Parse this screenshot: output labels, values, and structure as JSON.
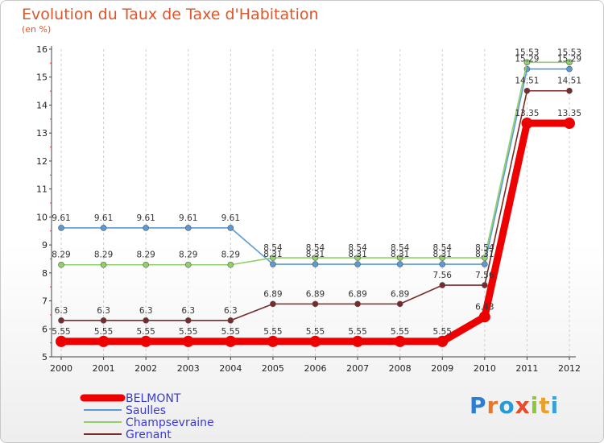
{
  "chart_data": {
    "type": "line",
    "title": "Evolution du Taux de Taxe d'Habitation",
    "unit_label": "(en %)",
    "x": [
      "2000",
      "2001",
      "2002",
      "2003",
      "2004",
      "2005",
      "2006",
      "2007",
      "2008",
      "2009",
      "2010",
      "2011",
      "2012"
    ],
    "ylim": [
      5,
      16
    ],
    "yticks": [
      "5",
      "6",
      "7",
      "8",
      "9",
      "10",
      "11",
      "12",
      "13",
      "14",
      "15",
      "16"
    ],
    "grid": "vertical-dashed",
    "legend_position": "bottom-left",
    "series": [
      {
        "name": "BELMONT",
        "color": "#ee0000",
        "values": [
          5.55,
          5.55,
          5.55,
          5.55,
          5.55,
          5.55,
          5.55,
          5.55,
          5.55,
          5.55,
          6.43,
          13.35,
          13.35
        ],
        "labels": [
          "5.55",
          "5.55",
          "5.55",
          "5.55",
          "5.55",
          "5.55",
          "5.55",
          "5.55",
          "5.55",
          "5.55",
          "6.43",
          "13.35",
          "13.35"
        ]
      },
      {
        "name": "Saulles",
        "color": "#5a9ad6",
        "values": [
          9.61,
          9.61,
          9.61,
          9.61,
          9.61,
          8.31,
          8.31,
          8.31,
          8.31,
          8.31,
          8.31,
          15.29,
          15.29
        ],
        "labels": [
          "9.61",
          "9.61",
          "9.61",
          "9.61",
          "9.61",
          "8.31",
          "8.31",
          "8.31",
          "8.31",
          "8.31",
          "8.31",
          "15.29",
          "15.29"
        ]
      },
      {
        "name": "Champsevraine",
        "color": "#8fd06a",
        "values": [
          8.29,
          8.29,
          8.29,
          8.29,
          8.29,
          8.54,
          8.54,
          8.54,
          8.54,
          8.54,
          8.54,
          15.53,
          15.53
        ],
        "labels": [
          "8.29",
          "8.29",
          "8.29",
          "8.29",
          "8.29",
          "8.54",
          "8.54",
          "8.54",
          "8.54",
          "8.54",
          "8.54",
          "15.53",
          "15.53"
        ]
      },
      {
        "name": "Grenant",
        "color": "#7a2a2a",
        "values": [
          6.3,
          6.3,
          6.3,
          6.3,
          6.3,
          6.89,
          6.89,
          6.89,
          6.89,
          7.56,
          7.56,
          14.51,
          14.51
        ],
        "labels": [
          "6.3",
          "6.3",
          "6.3",
          "6.3",
          "6.3",
          "6.89",
          "6.89",
          "6.89",
          "6.89",
          "7.56",
          "7.56",
          "14.51",
          "14.51"
        ]
      }
    ]
  },
  "brand": {
    "letters": [
      "P",
      "r",
      "o",
      "x",
      "i",
      "t",
      "i"
    ],
    "colors": [
      "#2a7fd4",
      "#e8772a",
      "#2a9ad4",
      "#e84a2a",
      "#8cc63f",
      "#e8a12a",
      "#3aa0d8"
    ]
  }
}
